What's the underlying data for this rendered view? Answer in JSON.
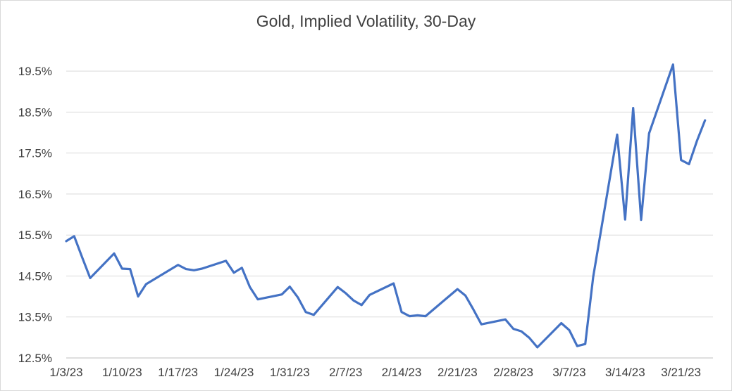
{
  "chart_data": {
    "type": "line",
    "title": "Gold, Implied Volatility, 30-Day",
    "xlabel": "",
    "ylabel": "",
    "ylim": [
      12.5,
      20.0
    ],
    "yticks": [
      12.5,
      13.5,
      14.5,
      15.5,
      16.5,
      17.5,
      18.5,
      19.5
    ],
    "ytick_labels": [
      "12.5%",
      "13.5%",
      "14.5%",
      "15.5%",
      "16.5%",
      "17.5%",
      "18.5%",
      "19.5%"
    ],
    "xlim": [
      "1/3/23",
      "3/25/23"
    ],
    "xticks": [
      "1/3/23",
      "1/10/23",
      "1/17/23",
      "1/24/23",
      "1/31/23",
      "2/7/23",
      "2/14/23",
      "2/21/23",
      "2/28/23",
      "3/7/23",
      "3/14/23",
      "3/21/23"
    ],
    "grid": true,
    "line_color": "#4472c4",
    "series": [
      {
        "x": [
          "1/3/23",
          "1/4/23",
          "1/5/23",
          "1/6/23",
          "1/9/23",
          "1/10/23",
          "1/11/23",
          "1/12/23",
          "1/13/23",
          "1/17/23",
          "1/18/23",
          "1/19/23",
          "1/20/23",
          "1/23/23",
          "1/24/23",
          "1/25/23",
          "1/26/23",
          "1/27/23",
          "1/30/23",
          "1/31/23",
          "2/1/23",
          "2/2/23",
          "2/3/23",
          "2/6/23",
          "2/7/23",
          "2/8/23",
          "2/9/23",
          "2/10/23",
          "2/13/23",
          "2/14/23",
          "2/15/23",
          "2/16/23",
          "2/17/23",
          "2/21/23",
          "2/22/23",
          "2/23/23",
          "2/24/23",
          "2/27/23",
          "2/28/23",
          "3/1/23",
          "3/2/23",
          "3/3/23",
          "3/6/23",
          "3/7/23",
          "3/8/23",
          "3/9/23",
          "3/10/23",
          "3/13/23",
          "3/14/23",
          "3/15/23",
          "3/16/23",
          "3/17/23",
          "3/20/23",
          "3/21/23",
          "3/22/23",
          "3/23/23",
          "3/24/23"
        ],
        "values": [
          15.35,
          15.47,
          14.95,
          14.45,
          15.05,
          14.68,
          14.67,
          14.0,
          14.3,
          14.77,
          14.67,
          14.64,
          14.68,
          14.87,
          14.58,
          14.7,
          14.23,
          13.93,
          14.05,
          14.24,
          13.98,
          13.62,
          13.55,
          14.23,
          14.08,
          13.9,
          13.79,
          14.04,
          14.32,
          13.62,
          13.52,
          13.54,
          13.52,
          14.18,
          14.02,
          13.68,
          13.32,
          13.44,
          13.21,
          13.15,
          12.99,
          12.76,
          13.35,
          13.18,
          12.79,
          12.84,
          14.48,
          17.95,
          15.88,
          18.6,
          15.87,
          17.98,
          19.66,
          17.33,
          17.23,
          17.8,
          18.3
        ]
      }
    ]
  }
}
